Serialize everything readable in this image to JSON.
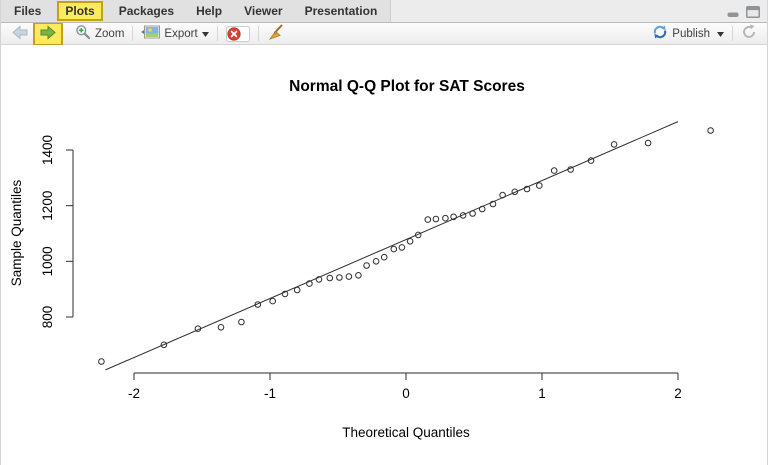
{
  "tabs": [
    {
      "label": "Files",
      "highlighted": false
    },
    {
      "label": "Plots",
      "highlighted": true
    },
    {
      "label": "Packages",
      "highlighted": false
    },
    {
      "label": "Help",
      "highlighted": false
    },
    {
      "label": "Viewer",
      "highlighted": false
    },
    {
      "label": "Presentation",
      "highlighted": false
    }
  ],
  "window_controls": {
    "minimize_icon": "minimize-icon",
    "maximize_icon": "maximize-icon"
  },
  "toolbar": {
    "back_icon": "back-arrow-icon",
    "forward_icon": "forward-arrow-icon",
    "forward_highlighted": true,
    "zoom_label": "Zoom",
    "export_label": "Export",
    "remove_plot_icon": "remove-plot-icon",
    "clear_plots_icon": "broom-icon",
    "publish_label": "Publish",
    "refresh_icon": "refresh-icon"
  },
  "colors": {
    "highlight_fill": "#ffe95e",
    "highlight_border": "#c2a214",
    "forward_arrow_green": "#7cb342",
    "back_arrow_gray": "#c9d4de",
    "remove_red": "#d8402f",
    "publish_blue": "#2b6dad",
    "plot_ink": "#2e2e2e"
  },
  "chart_data": {
    "type": "scatter",
    "title": "Normal Q-Q Plot for SAT Scores",
    "xlabel": "Theoretical Quantiles",
    "ylabel": "Sample Quantiles",
    "x_ticks": [
      -2,
      -1,
      0,
      1,
      2
    ],
    "y_ticks": [
      800,
      1000,
      1200,
      1400
    ],
    "xlim": [
      -2.3,
      2.3
    ],
    "ylim": [
      600,
      1510
    ],
    "grid": false,
    "legend": null,
    "n_points": 40,
    "points": {
      "theoretical": [
        -2.24,
        -1.78,
        -1.53,
        -1.36,
        -1.21,
        -1.09,
        -0.98,
        -0.89,
        -0.8,
        -0.71,
        -0.64,
        -0.56,
        -0.49,
        -0.42,
        -0.35,
        -0.29,
        -0.22,
        -0.16,
        -0.09,
        -0.03,
        0.03,
        0.09,
        0.16,
        0.22,
        0.29,
        0.35,
        0.42,
        0.49,
        0.56,
        0.64,
        0.71,
        0.8,
        0.89,
        0.98,
        1.09,
        1.21,
        1.36,
        1.53,
        1.78,
        2.24
      ],
      "sample": [
        640,
        700,
        758,
        763,
        782,
        845,
        857,
        883,
        897,
        920,
        935,
        940,
        942,
        945,
        950,
        985,
        1000,
        1015,
        1044,
        1050,
        1072,
        1095,
        1150,
        1152,
        1155,
        1160,
        1165,
        1172,
        1188,
        1206,
        1238,
        1250,
        1260,
        1272,
        1326,
        1330,
        1362,
        1420,
        1425,
        1470
      ]
    },
    "reference_line": {
      "x1": -2.21,
      "y1": 610,
      "x2": 2.0,
      "y2": 1502
    }
  }
}
